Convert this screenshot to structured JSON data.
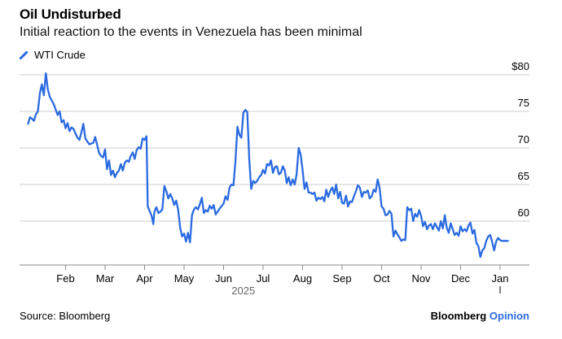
{
  "title": "Oil Undisturbed",
  "subtitle": "Initial reaction to the events in Venezuela has been minimal",
  "legend_label": "WTI Crude",
  "source": "Source: Bloomberg",
  "brand": {
    "name": "Bloomberg",
    "suffix": "Opinion"
  },
  "colors": {
    "line": "#2a6ae0",
    "grid": "#cccccc",
    "text": "#000000"
  },
  "chart_data": {
    "type": "line",
    "title": "Oil Undisturbed",
    "subtitle": "Initial reaction to the events in Venezuela has been minimal",
    "xlabel": "2025",
    "ylabel": "",
    "ylim": [
      54,
      80
    ],
    "x_range": [
      0,
      12.35
    ],
    "y_ticks": [
      {
        "value": 80,
        "label": "$80"
      },
      {
        "value": 75,
        "label": "75"
      },
      {
        "value": 70,
        "label": "70"
      },
      {
        "value": 65,
        "label": "65"
      },
      {
        "value": 60,
        "label": "60"
      }
    ],
    "x_ticks": [
      {
        "value": 1,
        "label": "Feb"
      },
      {
        "value": 2,
        "label": "Mar"
      },
      {
        "value": 3,
        "label": "Apr"
      },
      {
        "value": 4,
        "label": "May"
      },
      {
        "value": 5,
        "label": "Jun"
      },
      {
        "value": 6,
        "label": "Jul"
      },
      {
        "value": 7,
        "label": "Aug"
      },
      {
        "value": 8,
        "label": "Sep"
      },
      {
        "value": 9,
        "label": "Oct"
      },
      {
        "value": 10,
        "label": "Nov"
      },
      {
        "value": 11,
        "label": "Dec"
      },
      {
        "value": 12,
        "label": "Jan"
      }
    ],
    "year_label": {
      "value": 5.5,
      "label": "2025"
    },
    "series": [
      {
        "name": "WTI Crude",
        "points": [
          [
            0.05,
            73.3
          ],
          [
            0.1,
            74.2
          ],
          [
            0.15,
            74.0
          ],
          [
            0.2,
            73.7
          ],
          [
            0.25,
            74.6
          ],
          [
            0.3,
            75.0
          ],
          [
            0.35,
            77.5
          ],
          [
            0.4,
            78.7
          ],
          [
            0.45,
            77.2
          ],
          [
            0.5,
            80.2
          ],
          [
            0.55,
            78.0
          ],
          [
            0.6,
            77.0
          ],
          [
            0.7,
            76.0
          ],
          [
            0.8,
            74.5
          ],
          [
            0.85,
            75.0
          ],
          [
            0.9,
            73.5
          ],
          [
            0.95,
            73.8
          ],
          [
            1.0,
            72.7
          ],
          [
            1.05,
            73.4
          ],
          [
            1.1,
            72.3
          ],
          [
            1.15,
            72.8
          ],
          [
            1.2,
            72.6
          ],
          [
            1.3,
            71.4
          ],
          [
            1.35,
            71.1
          ],
          [
            1.4,
            72.1
          ],
          [
            1.45,
            73.3
          ],
          [
            1.5,
            71.3
          ],
          [
            1.6,
            70.5
          ],
          [
            1.7,
            70.7
          ],
          [
            1.75,
            71.5
          ],
          [
            1.8,
            70.4
          ],
          [
            1.85,
            69.3
          ],
          [
            1.9,
            68.9
          ],
          [
            1.95,
            68.7
          ],
          [
            2.0,
            69.8
          ],
          [
            2.05,
            67.1
          ],
          [
            2.1,
            68.3
          ],
          [
            2.15,
            66.3
          ],
          [
            2.2,
            66.9
          ],
          [
            2.25,
            66.0
          ],
          [
            2.3,
            66.6
          ],
          [
            2.35,
            66.9
          ],
          [
            2.4,
            67.8
          ],
          [
            2.45,
            66.9
          ],
          [
            2.5,
            68.0
          ],
          [
            2.55,
            68.3
          ],
          [
            2.6,
            68.1
          ],
          [
            2.65,
            68.9
          ],
          [
            2.7,
            69.4
          ],
          [
            2.75,
            68.5
          ],
          [
            2.8,
            69.7
          ],
          [
            2.85,
            70.1
          ],
          [
            2.9,
            69.9
          ],
          [
            2.95,
            71.3
          ],
          [
            3.0,
            71.1
          ],
          [
            3.05,
            71.6
          ],
          [
            3.08,
            62.0
          ],
          [
            3.12,
            61.5
          ],
          [
            3.18,
            60.7
          ],
          [
            3.22,
            59.6
          ],
          [
            3.25,
            61.3
          ],
          [
            3.3,
            61.9
          ],
          [
            3.35,
            61.1
          ],
          [
            3.4,
            61.3
          ],
          [
            3.45,
            61.6
          ],
          [
            3.5,
            64.8
          ],
          [
            3.55,
            64.1
          ],
          [
            3.6,
            63.1
          ],
          [
            3.65,
            63.7
          ],
          [
            3.7,
            63.1
          ],
          [
            3.75,
            62.2
          ],
          [
            3.8,
            62.8
          ],
          [
            3.85,
            61.6
          ],
          [
            3.9,
            59.1
          ],
          [
            3.95,
            57.9
          ],
          [
            4.0,
            58.3
          ],
          [
            4.05,
            57.2
          ],
          [
            4.1,
            58.4
          ],
          [
            4.15,
            57.1
          ],
          [
            4.2,
            60.8
          ],
          [
            4.25,
            61.6
          ],
          [
            4.3,
            61.9
          ],
          [
            4.35,
            61.6
          ],
          [
            4.4,
            62.3
          ],
          [
            4.45,
            63.2
          ],
          [
            4.5,
            61.1
          ],
          [
            4.55,
            61.5
          ],
          [
            4.6,
            61.3
          ],
          [
            4.65,
            62.1
          ],
          [
            4.7,
            61.7
          ],
          [
            4.75,
            62.2
          ],
          [
            4.8,
            60.9
          ],
          [
            4.9,
            61.7
          ],
          [
            5.0,
            62.4
          ],
          [
            5.05,
            63.4
          ],
          [
            5.1,
            62.9
          ],
          [
            5.15,
            64.6
          ],
          [
            5.2,
            65.0
          ],
          [
            5.25,
            64.9
          ],
          [
            5.3,
            68.2
          ],
          [
            5.35,
            72.9
          ],
          [
            5.4,
            71.8
          ],
          [
            5.45,
            71.4
          ],
          [
            5.5,
            74.8
          ],
          [
            5.55,
            75.2
          ],
          [
            5.6,
            74.9
          ],
          [
            5.65,
            68.5
          ],
          [
            5.7,
            64.4
          ],
          [
            5.75,
            65.5
          ],
          [
            5.8,
            65.2
          ],
          [
            5.85,
            65.5
          ],
          [
            5.9,
            66.0
          ],
          [
            5.95,
            66.3
          ],
          [
            6.0,
            67.0
          ],
          [
            6.05,
            66.5
          ],
          [
            6.1,
            67.8
          ],
          [
            6.15,
            67.6
          ],
          [
            6.2,
            68.3
          ],
          [
            6.25,
            66.6
          ],
          [
            6.3,
            67.4
          ],
          [
            6.35,
            67.5
          ],
          [
            6.4,
            66.4
          ],
          [
            6.45,
            66.6
          ],
          [
            6.5,
            67.5
          ],
          [
            6.55,
            66.9
          ],
          [
            6.6,
            65.2
          ],
          [
            6.65,
            66.0
          ],
          [
            6.7,
            64.9
          ],
          [
            6.75,
            65.7
          ],
          [
            6.8,
            65.0
          ],
          [
            6.85,
            66.4
          ],
          [
            6.9,
            70.0
          ],
          [
            6.95,
            69.1
          ],
          [
            7.0,
            67.0
          ],
          [
            7.05,
            64.4
          ],
          [
            7.1,
            65.3
          ],
          [
            7.15,
            63.9
          ],
          [
            7.2,
            63.9
          ],
          [
            7.25,
            63.7
          ],
          [
            7.3,
            63.9
          ],
          [
            7.35,
            62.8
          ],
          [
            7.4,
            63.2
          ],
          [
            7.45,
            63.0
          ],
          [
            7.5,
            63.3
          ],
          [
            7.55,
            62.7
          ],
          [
            7.6,
            64.3
          ],
          [
            7.65,
            63.3
          ],
          [
            7.7,
            64.1
          ],
          [
            7.75,
            64.6
          ],
          [
            7.8,
            63.7
          ],
          [
            7.85,
            65.0
          ],
          [
            7.9,
            63.1
          ],
          [
            7.95,
            64.0
          ],
          [
            8.0,
            62.5
          ],
          [
            8.05,
            62.4
          ],
          [
            8.1,
            63.5
          ],
          [
            8.15,
            62.0
          ],
          [
            8.2,
            62.7
          ],
          [
            8.25,
            62.6
          ],
          [
            8.3,
            63.4
          ],
          [
            8.35,
            64.1
          ],
          [
            8.4,
            64.9
          ],
          [
            8.45,
            64.6
          ],
          [
            8.5,
            63.3
          ],
          [
            8.55,
            64.0
          ],
          [
            8.6,
            63.9
          ],
          [
            8.65,
            64.2
          ],
          [
            8.7,
            63.1
          ],
          [
            8.75,
            63.4
          ],
          [
            8.8,
            64.3
          ],
          [
            8.85,
            64.0
          ],
          [
            8.9,
            65.7
          ],
          [
            8.95,
            64.5
          ],
          [
            9.0,
            62.0
          ],
          [
            9.05,
            61.7
          ],
          [
            9.1,
            60.8
          ],
          [
            9.15,
            60.9
          ],
          [
            9.2,
            61.4
          ],
          [
            9.25,
            61.0
          ],
          [
            9.3,
            57.9
          ],
          [
            9.35,
            58.7
          ],
          [
            9.4,
            58.2
          ],
          [
            9.45,
            57.8
          ],
          [
            9.5,
            57.3
          ],
          [
            9.55,
            57.5
          ],
          [
            9.6,
            57.4
          ],
          [
            9.65,
            61.9
          ],
          [
            9.7,
            61.5
          ],
          [
            9.75,
            61.7
          ],
          [
            9.8,
            60.0
          ],
          [
            9.85,
            61.0
          ],
          [
            9.9,
            60.6
          ],
          [
            9.95,
            61.5
          ],
          [
            10.0,
            60.7
          ],
          [
            10.05,
            59.3
          ],
          [
            10.1,
            59.9
          ],
          [
            10.15,
            58.9
          ],
          [
            10.2,
            59.4
          ],
          [
            10.25,
            59.6
          ],
          [
            10.3,
            58.9
          ],
          [
            10.35,
            59.7
          ],
          [
            10.4,
            59.2
          ],
          [
            10.45,
            58.7
          ],
          [
            10.5,
            60.0
          ],
          [
            10.55,
            59.0
          ],
          [
            10.6,
            60.8
          ],
          [
            10.65,
            59.1
          ],
          [
            10.7,
            58.4
          ],
          [
            10.75,
            59.7
          ],
          [
            10.8,
            58.9
          ],
          [
            10.85,
            58.1
          ],
          [
            10.9,
            58.4
          ],
          [
            10.95,
            58.0
          ],
          [
            11.0,
            59.3
          ],
          [
            11.05,
            58.6
          ],
          [
            11.1,
            58.9
          ],
          [
            11.15,
            58.6
          ],
          [
            11.2,
            59.4
          ],
          [
            11.25,
            59.8
          ],
          [
            11.3,
            58.3
          ],
          [
            11.35,
            58.8
          ],
          [
            11.4,
            57.0
          ],
          [
            11.45,
            56.6
          ],
          [
            11.5,
            55.1
          ],
          [
            11.55,
            56.0
          ],
          [
            11.6,
            56.3
          ],
          [
            11.65,
            57.3
          ],
          [
            11.7,
            57.9
          ],
          [
            11.75,
            58.1
          ],
          [
            11.8,
            57.1
          ],
          [
            11.85,
            56.0
          ],
          [
            11.9,
            57.2
          ],
          [
            11.95,
            57.7
          ],
          [
            12.0,
            57.4
          ],
          [
            12.05,
            57.3
          ],
          [
            12.2,
            57.3
          ]
        ]
      }
    ]
  }
}
